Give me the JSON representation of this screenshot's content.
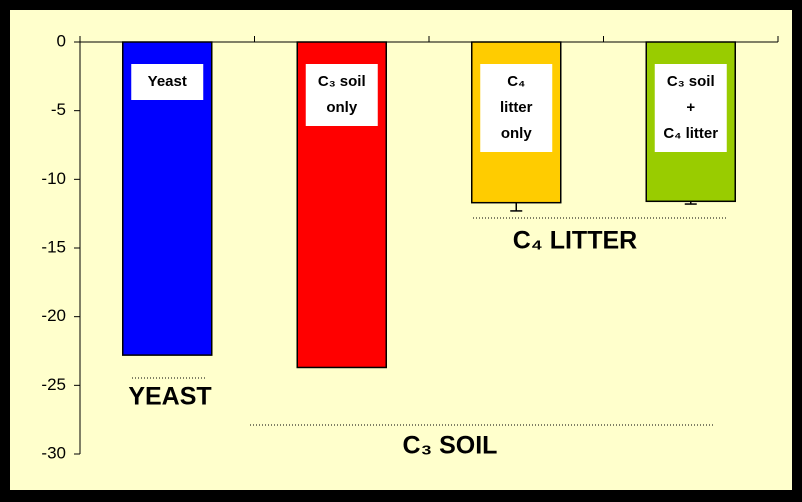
{
  "chart_data": {
    "type": "bar",
    "bar_labels": [
      [
        "Yeast"
      ],
      [
        "C₃ soil",
        "only"
      ],
      [
        "C₄",
        "litter",
        "only"
      ],
      [
        "C₃ soil",
        "+",
        "C₄ litter"
      ]
    ],
    "series": [
      {
        "name": null,
        "colors": [
          "#0000ff",
          "#ff0000",
          "#ffcc00",
          "#99cc00"
        ],
        "values": [
          -22.8,
          -23.7,
          -11.7,
          -11.6
        ],
        "errors": [
          null,
          null,
          0.6,
          0.2
        ]
      }
    ],
    "ylim": [
      -30,
      0
    ],
    "yticks": [
      0,
      -5,
      -10,
      -15,
      -20,
      -25,
      -30
    ],
    "grid": false,
    "annotations": [
      "YEAST",
      "C₄ LITTER",
      "C₃ SOIL"
    ]
  }
}
